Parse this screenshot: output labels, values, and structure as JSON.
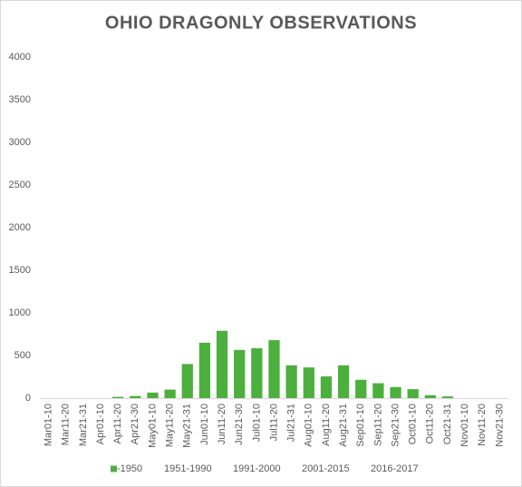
{
  "chart_data": {
    "type": "bar",
    "title": "OHIO DRAGONLY OBSERVATIONS",
    "categories": [
      "Mar01-10",
      "Mar11-20",
      "Mar21-31",
      "Apr01-10",
      "Apr11-20",
      "Apr21-30",
      "May01-10",
      "May11-20",
      "May21-31",
      "Jun01-10",
      "Jun11-20",
      "Jun21-30",
      "Jul01-10",
      "Jul11-20",
      "Jul21-31",
      "Aug01-10",
      "Aug11-20",
      "Aug21-31",
      "Sep01-10",
      "Sep11-20",
      "Sep21-30",
      "Oct01-10",
      "Oct11-20",
      "Oct21-31",
      "Nov01-10",
      "Nov11-20",
      "Nov21-30"
    ],
    "series": [
      {
        "name": "-1950",
        "color": "#4caf3e",
        "values": [
          0,
          0,
          0,
          0,
          15,
          25,
          65,
          100,
          400,
          650,
          790,
          565,
          585,
          680,
          385,
          360,
          255,
          385,
          215,
          175,
          130,
          105,
          35,
          20,
          0,
          0,
          0
        ]
      },
      {
        "name": "1951-1990",
        "color": null,
        "values": [
          0,
          0,
          0,
          0,
          0,
          0,
          0,
          0,
          0,
          0,
          0,
          0,
          0,
          0,
          0,
          0,
          0,
          0,
          0,
          0,
          0,
          0,
          0,
          0,
          0,
          0,
          0
        ]
      },
      {
        "name": "1991-2000",
        "color": null,
        "values": [
          0,
          0,
          0,
          0,
          0,
          0,
          0,
          0,
          0,
          0,
          0,
          0,
          0,
          0,
          0,
          0,
          0,
          0,
          0,
          0,
          0,
          0,
          0,
          0,
          0,
          0,
          0
        ]
      },
      {
        "name": "2001-2015",
        "color": null,
        "values": [
          0,
          0,
          0,
          0,
          0,
          0,
          0,
          0,
          0,
          0,
          0,
          0,
          0,
          0,
          0,
          0,
          0,
          0,
          0,
          0,
          0,
          0,
          0,
          0,
          0,
          0,
          0
        ]
      },
      {
        "name": "2016-2017",
        "color": null,
        "values": [
          0,
          0,
          0,
          0,
          0,
          0,
          0,
          0,
          0,
          0,
          0,
          0,
          0,
          0,
          0,
          0,
          0,
          0,
          0,
          0,
          0,
          0,
          0,
          0,
          0,
          0,
          0
        ]
      }
    ],
    "stacked": true,
    "ylim": [
      0,
      4000
    ],
    "yticks": [
      0,
      500,
      1000,
      1500,
      2000,
      2500,
      3000,
      3500,
      4000
    ],
    "grid": false,
    "legend": "bottom"
  }
}
